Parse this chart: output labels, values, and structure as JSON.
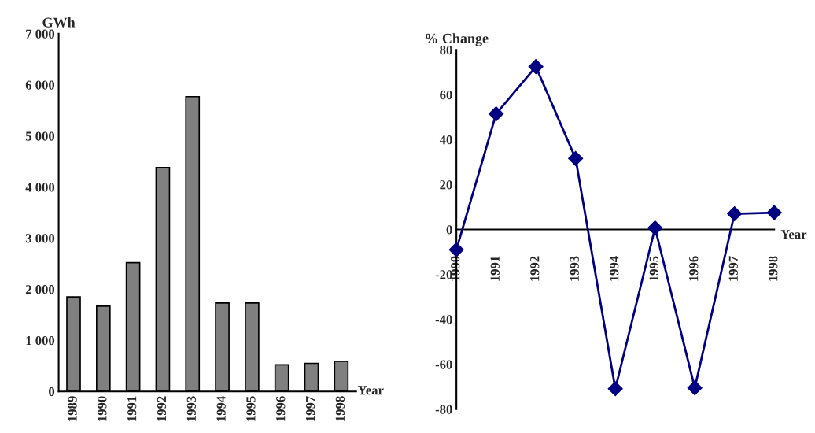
{
  "chart_data": [
    {
      "type": "bar",
      "ylabel": "GWh",
      "xlabel": "Year",
      "categories": [
        "1989",
        "1990",
        "1991",
        "1992",
        "1993",
        "1994",
        "1995",
        "1996",
        "1997",
        "1998"
      ],
      "series": [
        {
          "color": "#808080",
          "values": [
            1850,
            1670,
            2520,
            4380,
            5770,
            1730,
            1730,
            520,
            550,
            590
          ]
        }
      ],
      "ylim": [
        0,
        7000
      ],
      "yticks": [
        0,
        {
          "value": 1000,
          "label": "1 000"
        },
        {
          "value": 2000,
          "label": "2 000"
        },
        {
          "value": 3000,
          "label": "3 000"
        },
        {
          "value": 4000,
          "label": "4 000"
        },
        {
          "value": 5000,
          "label": "5 000"
        },
        {
          "value": 6000,
          "label": "6 000"
        },
        {
          "value": 7000,
          "label": "7 000"
        }
      ],
      "grid": false
    },
    {
      "type": "line",
      "ylabel": "% Change",
      "xlabel": "Year",
      "categories": [
        "1990",
        "1991",
        "1992",
        "1993",
        "1994",
        "1995",
        "1996",
        "1997",
        "1998"
      ],
      "series": [
        {
          "color": "#000080",
          "values": [
            -9,
            51.5,
            72.5,
            31.6,
            -70.9,
            0.7,
            -70.5,
            7,
            7.5
          ]
        }
      ],
      "ylim": [
        -80,
        80
      ],
      "yticks": [
        -80,
        -60,
        -40,
        -20,
        0,
        20,
        40,
        60,
        80
      ],
      "marker": "diamond",
      "line_style": "solid",
      "grid": false
    }
  ]
}
